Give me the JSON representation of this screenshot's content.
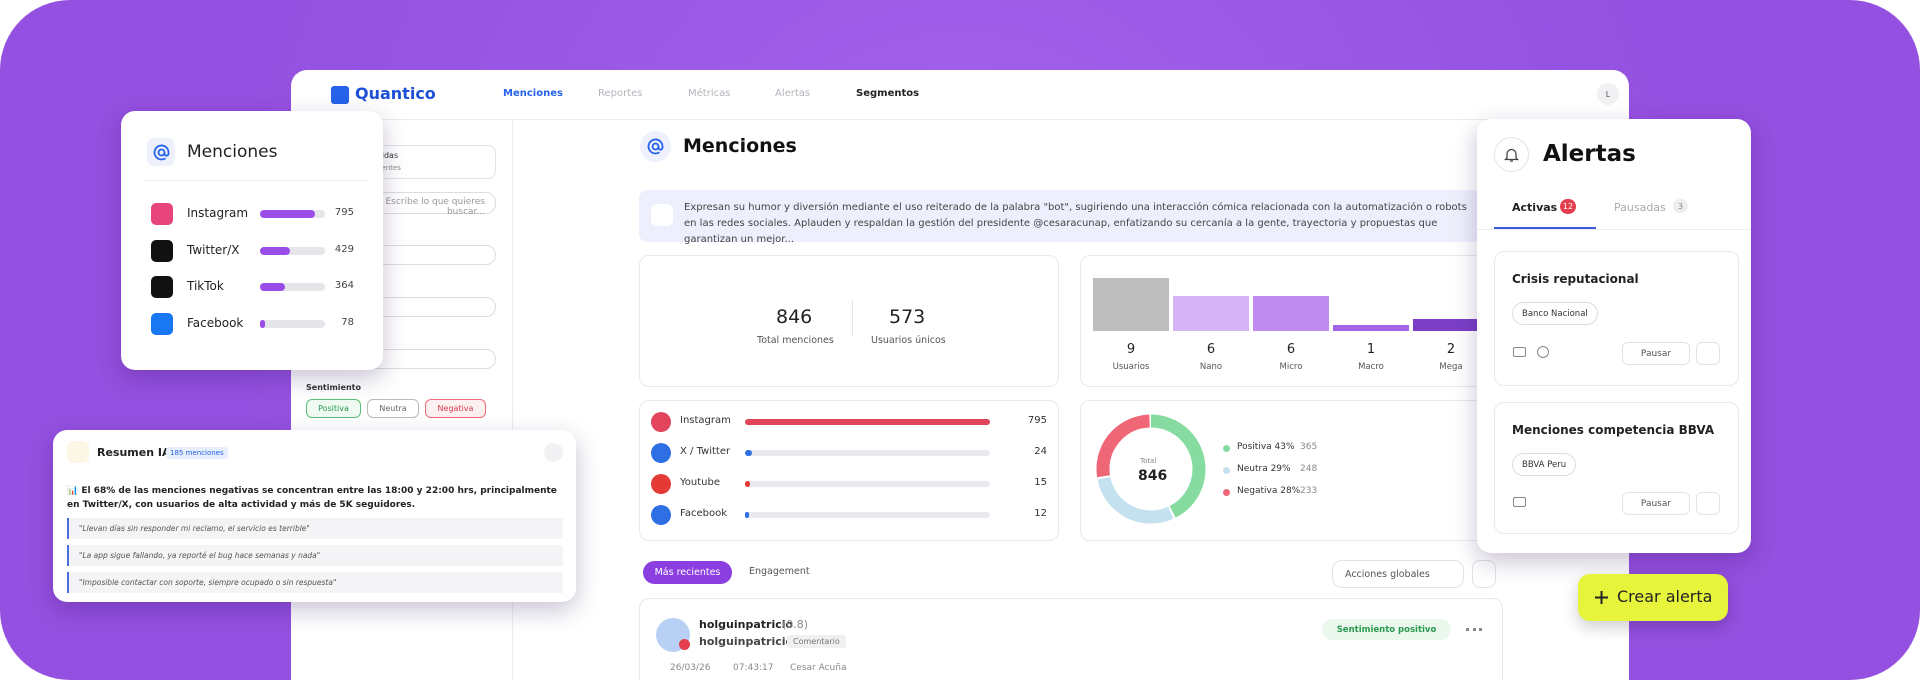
{
  "nav": {
    "brand": "Quantico",
    "items": [
      "Menciones",
      "Reportes",
      "Métricas",
      "Alertas",
      "Segmentos"
    ],
    "avatar": "L"
  },
  "sidebar": {
    "quick_title": "Búsquedas rápidas",
    "quick_sub": "Guardadas y recientes",
    "search": "Escribe lo que quieres buscar...",
    "sentiment_label": "Sentimiento",
    "chips": [
      "Positiva",
      "Neutra",
      "Negativa"
    ]
  },
  "main": {
    "title": "Menciones",
    "summary": "Expresan su humor y diversión mediante el uso reiterado de la palabra \"bot\", sugiriendo una interacción cómica relacionada con la automatización o robots en las redes sociales. Aplauden y respaldan la gestión del presidente @cesaracunap, enfatizando su cercanía a la gente, trayectoria y propuestas que garantizan un mejor...",
    "stats": [
      {
        "value": 846,
        "label": "Total menciones"
      },
      {
        "value": 573,
        "label": "Usuarios únicos"
      }
    ],
    "influencers": {
      "categories": [
        "Usuarios",
        "Nano",
        "Micro",
        "Macro",
        "Mega"
      ],
      "values": [
        9,
        6,
        6,
        1,
        2
      ],
      "colors": [
        "#bdbdbd",
        "#d7b4f5",
        "#c08bf0",
        "#a066e6",
        "#7b3fc7"
      ]
    },
    "platforms": {
      "names": [
        "Instagram",
        "X / Twitter",
        "Youtube",
        "Facebook"
      ],
      "values": [
        795,
        24,
        15,
        12
      ],
      "colors": [
        "#e2445c",
        "#2f6fe4",
        "#e53935",
        "#2f6fe4"
      ]
    },
    "sentiment": {
      "total_label": "Total",
      "total": 846,
      "items": [
        {
          "label": "Positiva 43%",
          "value": 365,
          "color": "#86dba0"
        },
        {
          "label": "Neutra 29%",
          "value": 248,
          "color": "#c3e1ee"
        },
        {
          "label": "Negativa 28%",
          "value": 233,
          "color": "#ef6676"
        }
      ]
    },
    "tabs": [
      "Más recientes",
      "Engagement"
    ],
    "actions": "Acciones globales",
    "post": {
      "user": "holguinpatricio",
      "score": "(0.8)",
      "handle": "holguinpatricio",
      "kind": "Comentario",
      "sentiment": "Sentimiento positivo",
      "date": "26/03/26",
      "time": "07:43:17",
      "author": "Cesar Acuña"
    }
  },
  "mentions_card": {
    "title": "Menciones",
    "names": [
      "Instagram",
      "Twitter/X",
      "TikTok",
      "Facebook"
    ],
    "values": [
      795,
      429,
      364,
      78
    ]
  },
  "summary_card": {
    "title": "Resumen IA",
    "badge": "185 menciones",
    "text": "📊 El 68% de las menciones negativas se concentran entre las 18:00 y 22:00 hrs, principalmente en Twitter/X, con usuarios de alta actividad y más de 5K seguidores.",
    "quotes": [
      "\"Llevan días sin responder mi reclamo, el servicio es terrible\"",
      "\"La app sigue fallando, ya reporté el bug hace semanas y nada\"",
      "\"Imposible contactar con soporte, siempre ocupado o sin respuesta\""
    ]
  },
  "alerts": {
    "title": "Alertas",
    "tabs": [
      {
        "label": "Activas",
        "count": 12
      },
      {
        "label": "Pausadas",
        "count": 3
      }
    ],
    "items": [
      {
        "name": "Crisis reputacional",
        "tag": "Banco Nacional",
        "action": "Pausar"
      },
      {
        "name": "Menciones competencia BBVA",
        "tag": "BBVA Peru",
        "action": "Pausar"
      }
    ]
  },
  "create_button": "Crear alerta"
}
